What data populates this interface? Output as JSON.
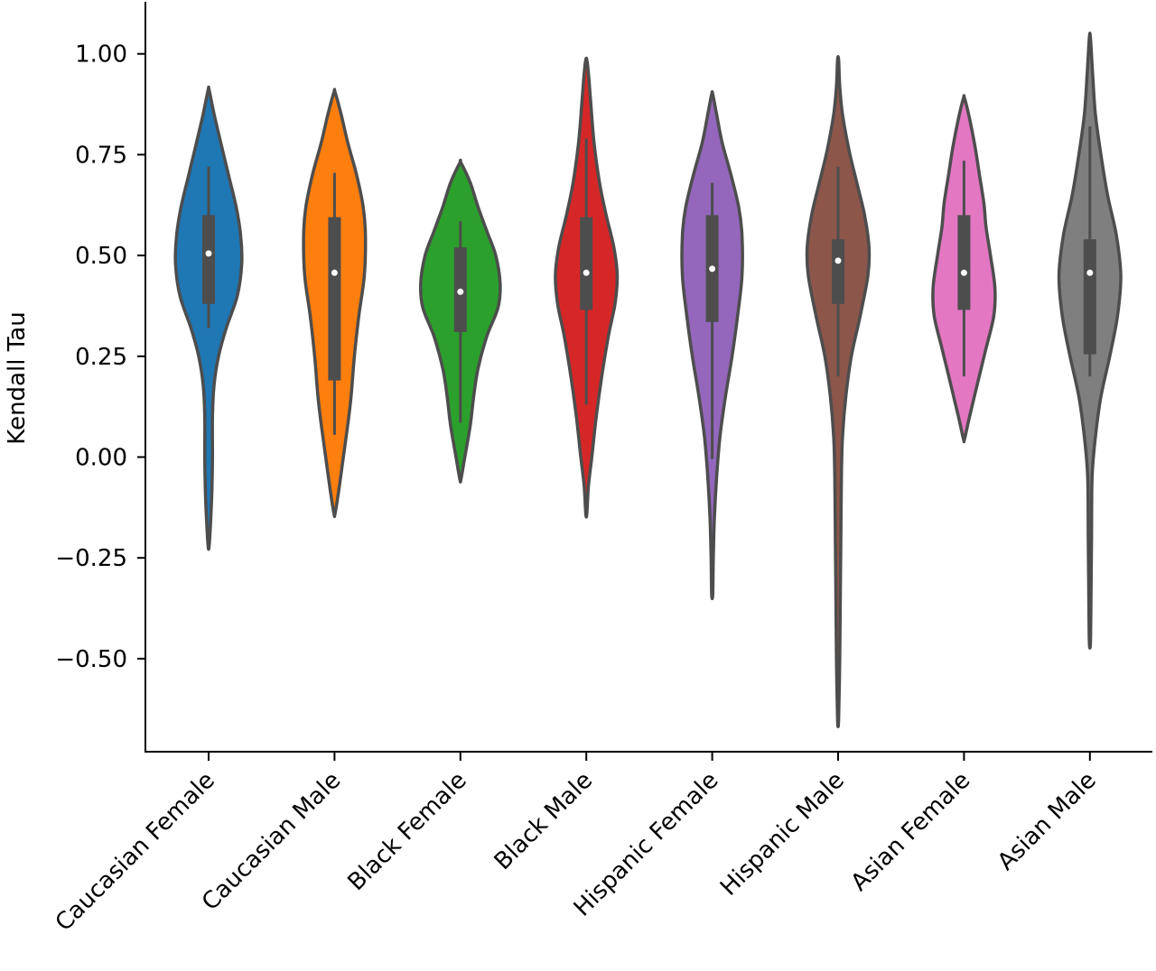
{
  "chart_data": {
    "type": "violin",
    "title": "",
    "xlabel": "",
    "ylabel": "Kendall Tau",
    "ylim": [
      -0.73,
      1.12
    ],
    "yticks": [
      -0.5,
      -0.25,
      0.0,
      0.25,
      0.5,
      0.75,
      1.0
    ],
    "ytick_labels": [
      "−0.50",
      "−0.25",
      "0.00",
      "0.25",
      "0.50",
      "0.75",
      "1.00"
    ],
    "grid": false,
    "legend": "none",
    "categories": [
      "Caucasian Female",
      "Caucasian Male",
      "Black Female",
      "Black Male",
      "Hispanic Female",
      "Hispanic Male",
      "Asian Female",
      "Asian Male"
    ],
    "series": [
      {
        "category": "Caucasian Female",
        "color": "#1f77b4",
        "min": 0.32,
        "q1": 0.38,
        "median": 0.505,
        "q3": 0.6,
        "max": 0.72,
        "kde_low": -0.22,
        "kde_high": 0.91,
        "density": [
          [
            -0.22,
            0.005
          ],
          [
            -0.15,
            0.02
          ],
          [
            -0.08,
            0.03
          ],
          [
            0.0,
            0.035
          ],
          [
            0.1,
            0.035
          ],
          [
            0.18,
            0.05
          ],
          [
            0.25,
            0.09
          ],
          [
            0.32,
            0.16
          ],
          [
            0.4,
            0.26
          ],
          [
            0.48,
            0.3
          ],
          [
            0.55,
            0.29
          ],
          [
            0.62,
            0.25
          ],
          [
            0.7,
            0.18
          ],
          [
            0.78,
            0.11
          ],
          [
            0.85,
            0.05
          ],
          [
            0.91,
            0.005
          ]
        ]
      },
      {
        "category": "Caucasian Male",
        "color": "#ff7f0e",
        "min": 0.055,
        "q1": 0.19,
        "median": 0.457,
        "q3": 0.595,
        "max": 0.705,
        "kde_low": -0.14,
        "kde_high": 0.905,
        "density": [
          [
            -0.14,
            0.005
          ],
          [
            -0.08,
            0.04
          ],
          [
            0.0,
            0.08
          ],
          [
            0.08,
            0.12
          ],
          [
            0.15,
            0.15
          ],
          [
            0.25,
            0.18
          ],
          [
            0.35,
            0.22
          ],
          [
            0.45,
            0.27
          ],
          [
            0.55,
            0.28
          ],
          [
            0.62,
            0.26
          ],
          [
            0.7,
            0.2
          ],
          [
            0.78,
            0.12
          ],
          [
            0.85,
            0.06
          ],
          [
            0.905,
            0.005
          ]
        ]
      },
      {
        "category": "Black Female",
        "color": "#2ca02c",
        "min": 0.085,
        "q1": 0.31,
        "median": 0.41,
        "q3": 0.52,
        "max": 0.585,
        "kde_low": -0.055,
        "kde_high": 0.73,
        "density": [
          [
            -0.055,
            0.005
          ],
          [
            0.0,
            0.04
          ],
          [
            0.08,
            0.09
          ],
          [
            0.15,
            0.12
          ],
          [
            0.22,
            0.16
          ],
          [
            0.3,
            0.24
          ],
          [
            0.37,
            0.34
          ],
          [
            0.43,
            0.36
          ],
          [
            0.5,
            0.32
          ],
          [
            0.56,
            0.24
          ],
          [
            0.62,
            0.16
          ],
          [
            0.68,
            0.09
          ],
          [
            0.73,
            0.005
          ]
        ]
      },
      {
        "category": "Black Male",
        "color": "#d62728",
        "min": 0.13,
        "q1": 0.365,
        "median": 0.457,
        "q3": 0.595,
        "max": 0.79,
        "kde_low": -0.14,
        "kde_high": 0.985,
        "density": [
          [
            -0.14,
            0.005
          ],
          [
            -0.07,
            0.02
          ],
          [
            0.0,
            0.05
          ],
          [
            0.1,
            0.09
          ],
          [
            0.2,
            0.14
          ],
          [
            0.3,
            0.2
          ],
          [
            0.38,
            0.26
          ],
          [
            0.45,
            0.28
          ],
          [
            0.52,
            0.25
          ],
          [
            0.6,
            0.18
          ],
          [
            0.68,
            0.12
          ],
          [
            0.78,
            0.07
          ],
          [
            0.88,
            0.04
          ],
          [
            0.95,
            0.02
          ],
          [
            0.985,
            0.005
          ]
        ]
      },
      {
        "category": "Hispanic Female",
        "color": "#9467bd",
        "min": -0.005,
        "q1": 0.335,
        "median": 0.467,
        "q3": 0.6,
        "max": 0.68,
        "kde_low": -0.34,
        "kde_high": 0.9,
        "density": [
          [
            -0.34,
            0.005
          ],
          [
            -0.25,
            0.01
          ],
          [
            -0.15,
            0.02
          ],
          [
            -0.05,
            0.04
          ],
          [
            0.05,
            0.07
          ],
          [
            0.15,
            0.12
          ],
          [
            0.25,
            0.18
          ],
          [
            0.35,
            0.23
          ],
          [
            0.45,
            0.27
          ],
          [
            0.55,
            0.27
          ],
          [
            0.62,
            0.24
          ],
          [
            0.7,
            0.17
          ],
          [
            0.78,
            0.09
          ],
          [
            0.85,
            0.04
          ],
          [
            0.9,
            0.005
          ]
        ]
      },
      {
        "category": "Hispanic Male",
        "color": "#8c564b",
        "min": 0.2,
        "q1": 0.38,
        "median": 0.487,
        "q3": 0.54,
        "max": 0.72,
        "kde_low": -0.65,
        "kde_high": 0.985,
        "density": [
          [
            -0.65,
            0.005
          ],
          [
            -0.5,
            0.015
          ],
          [
            -0.35,
            0.02
          ],
          [
            -0.2,
            0.025
          ],
          [
            -0.05,
            0.03
          ],
          [
            0.05,
            0.04
          ],
          [
            0.15,
            0.07
          ],
          [
            0.25,
            0.12
          ],
          [
            0.35,
            0.2
          ],
          [
            0.45,
            0.27
          ],
          [
            0.52,
            0.28
          ],
          [
            0.6,
            0.24
          ],
          [
            0.68,
            0.17
          ],
          [
            0.76,
            0.1
          ],
          [
            0.85,
            0.04
          ],
          [
            0.92,
            0.015
          ],
          [
            0.985,
            0.005
          ]
        ]
      },
      {
        "category": "Asian Female",
        "color": "#e377c2",
        "min": 0.2,
        "q1": 0.365,
        "median": 0.457,
        "q3": 0.6,
        "max": 0.735,
        "kde_low": 0.045,
        "kde_high": 0.89,
        "density": [
          [
            0.045,
            0.005
          ],
          [
            0.1,
            0.05
          ],
          [
            0.18,
            0.12
          ],
          [
            0.27,
            0.2
          ],
          [
            0.35,
            0.27
          ],
          [
            0.42,
            0.28
          ],
          [
            0.5,
            0.24
          ],
          [
            0.57,
            0.2
          ],
          [
            0.63,
            0.18
          ],
          [
            0.7,
            0.14
          ],
          [
            0.77,
            0.1
          ],
          [
            0.84,
            0.05
          ],
          [
            0.89,
            0.005
          ]
        ]
      },
      {
        "category": "Asian Male",
        "color": "#7f7f7f",
        "min": 0.2,
        "q1": 0.255,
        "median": 0.457,
        "q3": 0.54,
        "max": 0.82,
        "kde_low": -0.46,
        "kde_high": 1.04,
        "density": [
          [
            -0.46,
            0.005
          ],
          [
            -0.35,
            0.01
          ],
          [
            -0.2,
            0.015
          ],
          [
            -0.05,
            0.02
          ],
          [
            0.05,
            0.05
          ],
          [
            0.15,
            0.1
          ],
          [
            0.25,
            0.18
          ],
          [
            0.35,
            0.25
          ],
          [
            0.45,
            0.28
          ],
          [
            0.55,
            0.24
          ],
          [
            0.65,
            0.16
          ],
          [
            0.75,
            0.1
          ],
          [
            0.85,
            0.05
          ],
          [
            0.95,
            0.025
          ],
          [
            1.04,
            0.005
          ]
        ]
      }
    ]
  }
}
